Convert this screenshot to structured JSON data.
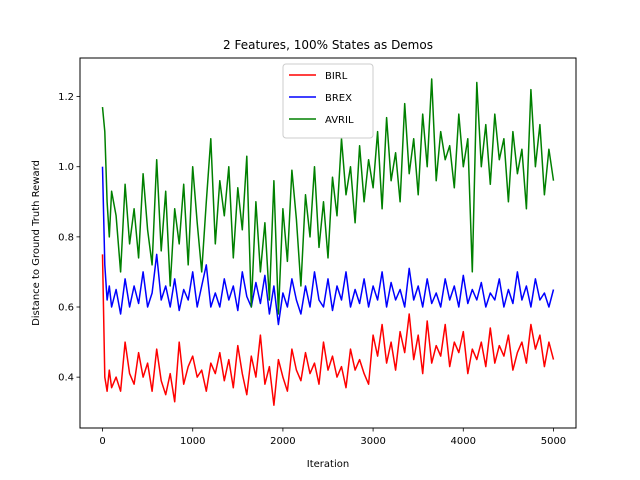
{
  "chart_data": {
    "type": "line",
    "title": "2 Features, 100% States as Demos",
    "xlabel": "Iteration",
    "ylabel": "Distance to Ground Truth Reward",
    "xlim": [
      -250,
      5250
    ],
    "ylim": [
      0.255,
      1.31
    ],
    "xticks": [
      0,
      1000,
      2000,
      3000,
      4000,
      5000
    ],
    "yticks": [
      0.4,
      0.6,
      0.8,
      1.0,
      1.2
    ],
    "xtick_labels": [
      "0",
      "1000",
      "2000",
      "3000",
      "4000",
      "5000"
    ],
    "ytick_labels": [
      "0.4",
      "0.6",
      "0.8",
      "1.0",
      "1.2"
    ],
    "grid": false,
    "legend_position": "upper center",
    "series": [
      {
        "name": "BIRL",
        "color": "#ff0000",
        "x": [
          0,
          25,
          50,
          75,
          100,
          150,
          200,
          250,
          300,
          350,
          400,
          450,
          500,
          550,
          600,
          650,
          700,
          750,
          800,
          850,
          900,
          950,
          1000,
          1050,
          1100,
          1150,
          1200,
          1250,
          1300,
          1350,
          1400,
          1450,
          1500,
          1550,
          1600,
          1650,
          1700,
          1750,
          1800,
          1850,
          1900,
          1950,
          2000,
          2050,
          2100,
          2150,
          2200,
          2250,
          2300,
          2350,
          2400,
          2450,
          2500,
          2550,
          2600,
          2650,
          2700,
          2750,
          2800,
          2850,
          2900,
          2950,
          3000,
          3050,
          3100,
          3150,
          3200,
          3250,
          3300,
          3350,
          3400,
          3450,
          3500,
          3550,
          3600,
          3650,
          3700,
          3750,
          3800,
          3850,
          3900,
          3950,
          4000,
          4050,
          4100,
          4150,
          4200,
          4250,
          4300,
          4350,
          4400,
          4450,
          4500,
          4550,
          4600,
          4650,
          4700,
          4750,
          4800,
          4850,
          4900,
          4950,
          5000
        ],
        "values": [
          0.75,
          0.4,
          0.36,
          0.42,
          0.37,
          0.4,
          0.36,
          0.5,
          0.41,
          0.38,
          0.47,
          0.4,
          0.44,
          0.36,
          0.48,
          0.39,
          0.35,
          0.41,
          0.33,
          0.5,
          0.38,
          0.43,
          0.46,
          0.4,
          0.42,
          0.36,
          0.44,
          0.41,
          0.47,
          0.39,
          0.45,
          0.37,
          0.49,
          0.41,
          0.35,
          0.46,
          0.4,
          0.52,
          0.38,
          0.43,
          0.32,
          0.45,
          0.4,
          0.36,
          0.48,
          0.42,
          0.39,
          0.47,
          0.41,
          0.44,
          0.38,
          0.5,
          0.42,
          0.46,
          0.4,
          0.43,
          0.37,
          0.48,
          0.42,
          0.45,
          0.41,
          0.38,
          0.52,
          0.46,
          0.55,
          0.44,
          0.5,
          0.42,
          0.53,
          0.47,
          0.58,
          0.45,
          0.52,
          0.41,
          0.56,
          0.44,
          0.49,
          0.46,
          0.55,
          0.43,
          0.5,
          0.47,
          0.53,
          0.41,
          0.48,
          0.45,
          0.5,
          0.43,
          0.54,
          0.44,
          0.49,
          0.46,
          0.52,
          0.42,
          0.47,
          0.5,
          0.44,
          0.55,
          0.48,
          0.52,
          0.43,
          0.5,
          0.45
        ]
      },
      {
        "name": "BREX",
        "color": "#0000ff",
        "x": [
          0,
          25,
          50,
          75,
          100,
          150,
          200,
          250,
          300,
          350,
          400,
          450,
          500,
          550,
          600,
          650,
          700,
          750,
          800,
          850,
          900,
          950,
          1000,
          1050,
          1100,
          1150,
          1200,
          1250,
          1300,
          1350,
          1400,
          1450,
          1500,
          1550,
          1600,
          1650,
          1700,
          1750,
          1800,
          1850,
          1900,
          1950,
          2000,
          2050,
          2100,
          2150,
          2200,
          2250,
          2300,
          2350,
          2400,
          2450,
          2500,
          2550,
          2600,
          2650,
          2700,
          2750,
          2800,
          2850,
          2900,
          2950,
          3000,
          3050,
          3100,
          3150,
          3200,
          3250,
          3300,
          3350,
          3400,
          3450,
          3500,
          3550,
          3600,
          3650,
          3700,
          3750,
          3800,
          3850,
          3900,
          3950,
          4000,
          4050,
          4100,
          4150,
          4200,
          4250,
          4300,
          4350,
          4400,
          4450,
          4500,
          4550,
          4600,
          4650,
          4700,
          4750,
          4800,
          4850,
          4900,
          4950,
          5000
        ],
        "values": [
          1.0,
          0.72,
          0.62,
          0.66,
          0.6,
          0.65,
          0.58,
          0.68,
          0.6,
          0.66,
          0.61,
          0.7,
          0.6,
          0.64,
          0.75,
          0.62,
          0.66,
          0.6,
          0.68,
          0.59,
          0.65,
          0.62,
          0.7,
          0.6,
          0.66,
          0.72,
          0.6,
          0.64,
          0.6,
          0.68,
          0.62,
          0.66,
          0.59,
          0.7,
          0.63,
          0.6,
          0.67,
          0.61,
          0.69,
          0.58,
          0.66,
          0.55,
          0.64,
          0.6,
          0.68,
          0.62,
          0.58,
          0.66,
          0.6,
          0.7,
          0.62,
          0.6,
          0.68,
          0.59,
          0.66,
          0.62,
          0.7,
          0.6,
          0.65,
          0.61,
          0.68,
          0.6,
          0.66,
          0.62,
          0.7,
          0.6,
          0.67,
          0.62,
          0.65,
          0.6,
          0.71,
          0.62,
          0.66,
          0.6,
          0.68,
          0.61,
          0.64,
          0.6,
          0.68,
          0.62,
          0.66,
          0.6,
          0.69,
          0.61,
          0.65,
          0.62,
          0.67,
          0.6,
          0.64,
          0.62,
          0.68,
          0.6,
          0.65,
          0.61,
          0.7,
          0.62,
          0.66,
          0.6,
          0.68,
          0.62,
          0.64,
          0.6,
          0.65
        ]
      },
      {
        "name": "AVRIL",
        "color": "#008000",
        "x": [
          0,
          25,
          50,
          75,
          100,
          150,
          200,
          250,
          300,
          350,
          400,
          450,
          500,
          550,
          600,
          650,
          700,
          750,
          800,
          850,
          900,
          950,
          1000,
          1050,
          1100,
          1150,
          1200,
          1250,
          1300,
          1350,
          1400,
          1450,
          1500,
          1550,
          1600,
          1650,
          1700,
          1750,
          1800,
          1850,
          1900,
          1950,
          2000,
          2050,
          2100,
          2150,
          2200,
          2250,
          2300,
          2350,
          2400,
          2450,
          2500,
          2550,
          2600,
          2650,
          2700,
          2750,
          2800,
          2850,
          2900,
          2950,
          3000,
          3050,
          3100,
          3150,
          3200,
          3250,
          3300,
          3350,
          3400,
          3450,
          3500,
          3550,
          3600,
          3650,
          3700,
          3750,
          3800,
          3850,
          3900,
          3950,
          4000,
          4050,
          4100,
          4150,
          4200,
          4250,
          4300,
          4350,
          4400,
          4450,
          4500,
          4550,
          4600,
          4650,
          4700,
          4750,
          4800,
          4850,
          4900,
          4950,
          5000
        ],
        "values": [
          1.17,
          1.1,
          0.9,
          0.8,
          0.93,
          0.86,
          0.7,
          0.95,
          0.78,
          0.88,
          0.74,
          0.98,
          0.82,
          0.72,
          1.02,
          0.76,
          0.93,
          0.66,
          0.88,
          0.78,
          0.95,
          0.72,
          1.0,
          0.84,
          0.7,
          0.9,
          1.08,
          0.78,
          0.96,
          0.86,
          1.0,
          0.74,
          0.94,
          0.82,
          1.03,
          0.6,
          0.9,
          0.7,
          0.84,
          0.62,
          0.96,
          0.58,
          0.88,
          0.73,
          0.99,
          0.85,
          0.66,
          0.92,
          0.8,
          1.0,
          0.77,
          0.9,
          0.74,
          0.97,
          0.86,
          1.08,
          0.92,
          1.0,
          0.84,
          1.06,
          0.9,
          1.02,
          0.94,
          1.1,
          0.88,
          1.14,
          0.96,
          1.04,
          0.9,
          1.18,
          0.98,
          1.08,
          0.92,
          1.15,
          1.0,
          1.25,
          0.96,
          1.1,
          1.02,
          1.06,
          0.94,
          1.15,
          1.0,
          1.08,
          0.7,
          1.24,
          1.0,
          1.12,
          0.95,
          1.15,
          1.02,
          1.08,
          0.9,
          1.1,
          0.98,
          1.05,
          0.88,
          1.22,
          1.0,
          1.12,
          0.92,
          1.05,
          0.96
        ]
      }
    ]
  }
}
